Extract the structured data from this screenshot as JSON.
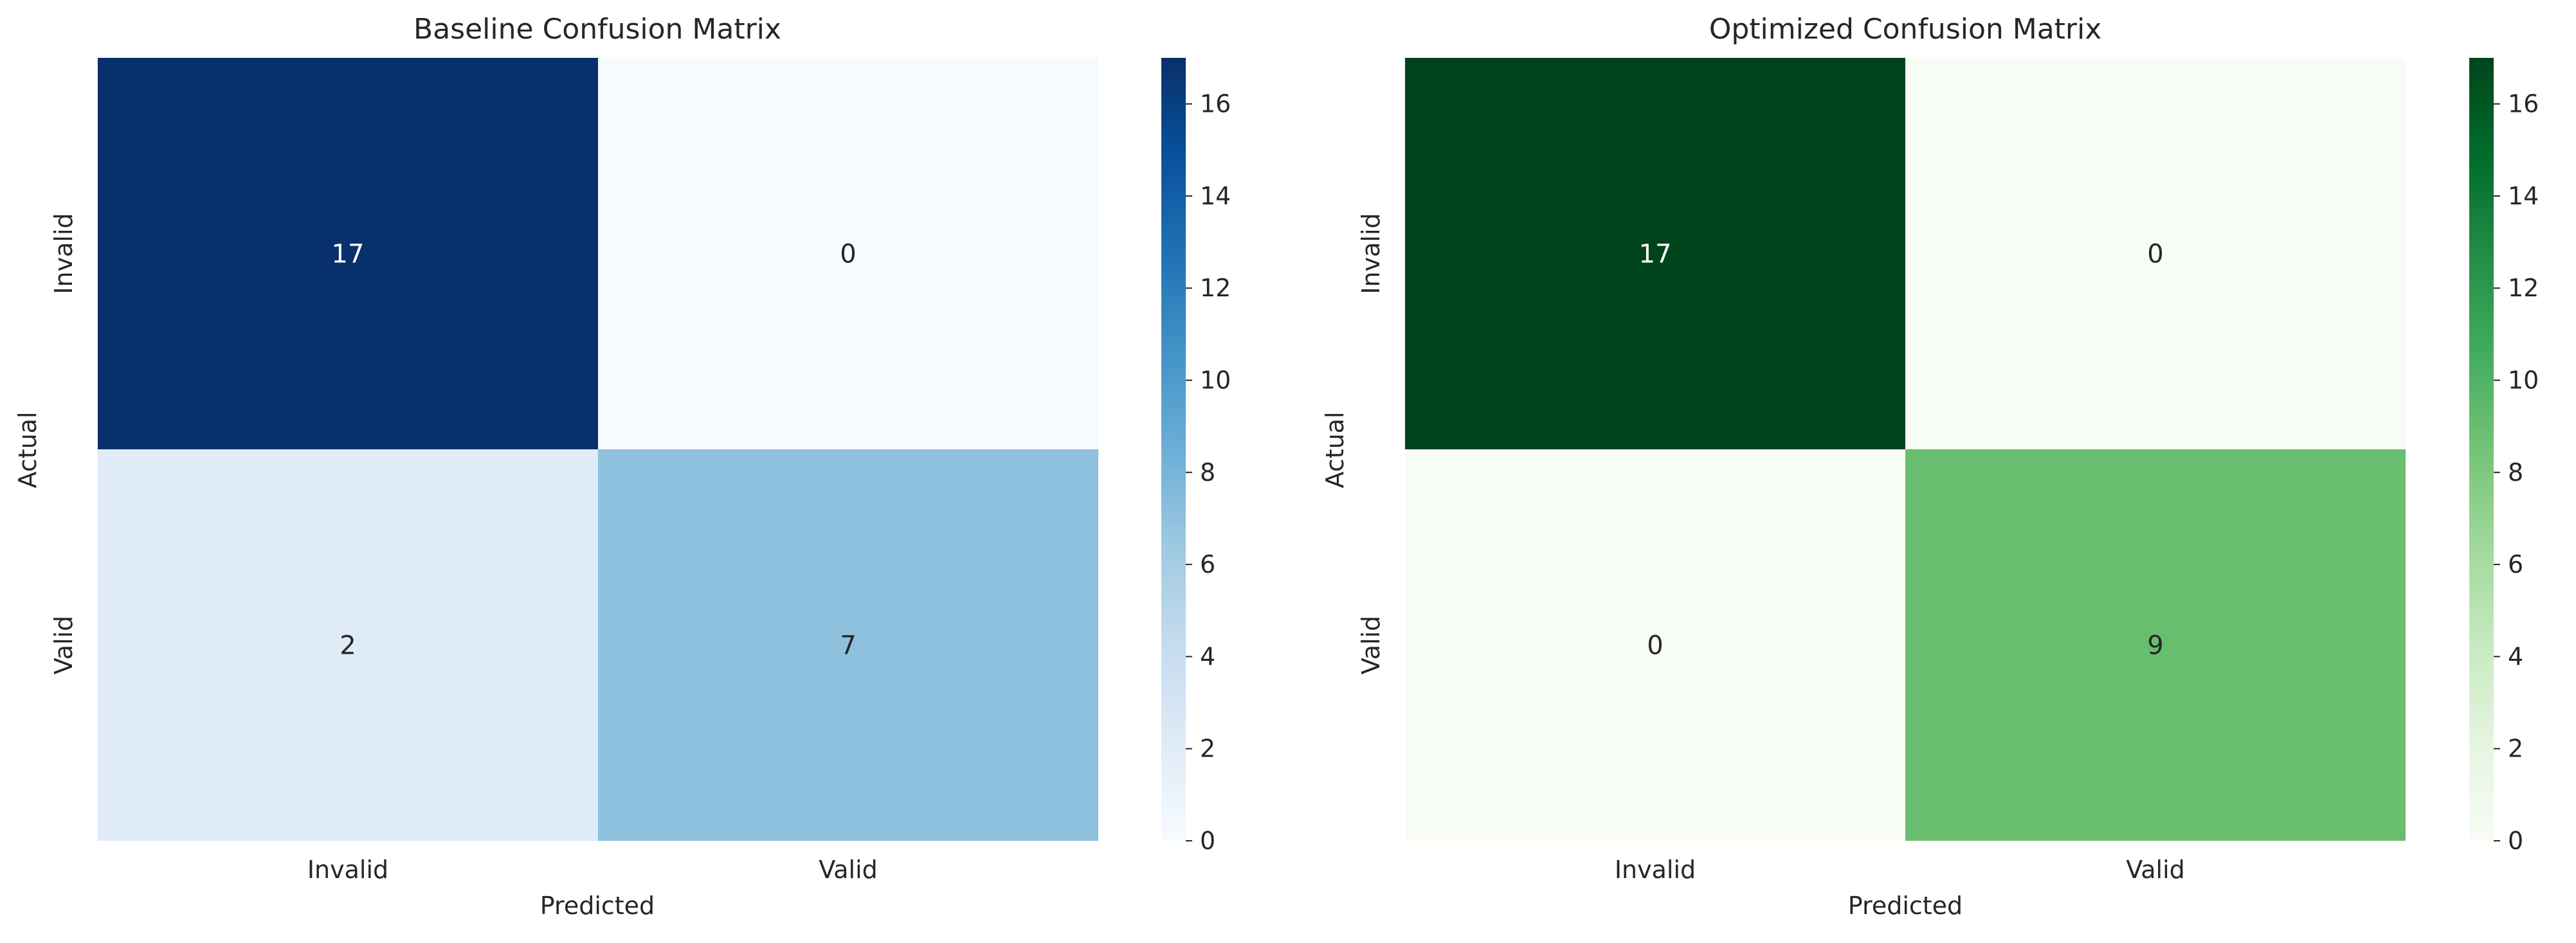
{
  "chart_data": [
    {
      "type": "heatmap",
      "title": "Baseline Confusion Matrix",
      "xlabel": "Predicted",
      "ylabel": "Actual",
      "x_categories": [
        "Invalid",
        "Valid"
      ],
      "y_categories": [
        "Invalid",
        "Valid"
      ],
      "values": [
        [
          17,
          0
        ],
        [
          2,
          7
        ]
      ],
      "value_labels": [
        [
          "17",
          "0"
        ],
        [
          "2",
          "7"
        ]
      ],
      "colormap": "Blues",
      "vmin": 0,
      "vmax": 17,
      "colorbar_ticks": [
        0,
        2,
        4,
        6,
        8,
        10,
        12,
        14,
        16
      ],
      "colorbar_tick_labels": [
        "0",
        "2",
        "4",
        "6",
        "8",
        "10",
        "12",
        "14",
        "16"
      ],
      "colors": {
        "low": "#f7fbff",
        "high": "#08306b",
        "cell_colors": [
          [
            "#08306b",
            "#f7fbff"
          ],
          [
            "#dfebf7",
            "#8dc1dd"
          ]
        ],
        "text_on_dark": "#ffffff",
        "text_on_light": "#262626"
      }
    },
    {
      "type": "heatmap",
      "title": "Optimized Confusion Matrix",
      "xlabel": "Predicted",
      "ylabel": "Actual",
      "x_categories": [
        "Invalid",
        "Valid"
      ],
      "y_categories": [
        "Invalid",
        "Valid"
      ],
      "values": [
        [
          17,
          0
        ],
        [
          0,
          9
        ]
      ],
      "value_labels": [
        [
          "17",
          "0"
        ],
        [
          "0",
          "9"
        ]
      ],
      "colormap": "Greens",
      "vmin": 0,
      "vmax": 17,
      "colorbar_ticks": [
        0,
        2,
        4,
        6,
        8,
        10,
        12,
        14,
        16
      ],
      "colorbar_tick_labels": [
        "0",
        "2",
        "4",
        "6",
        "8",
        "10",
        "12",
        "14",
        "16"
      ],
      "colors": {
        "low": "#f7fcf5",
        "high": "#00441b",
        "cell_colors": [
          [
            "#00441b",
            "#f7fcf5"
          ],
          [
            "#f7fcf5",
            "#68bd6f"
          ]
        ],
        "text_on_dark": "#ffffff",
        "text_on_light": "#262626"
      }
    }
  ]
}
